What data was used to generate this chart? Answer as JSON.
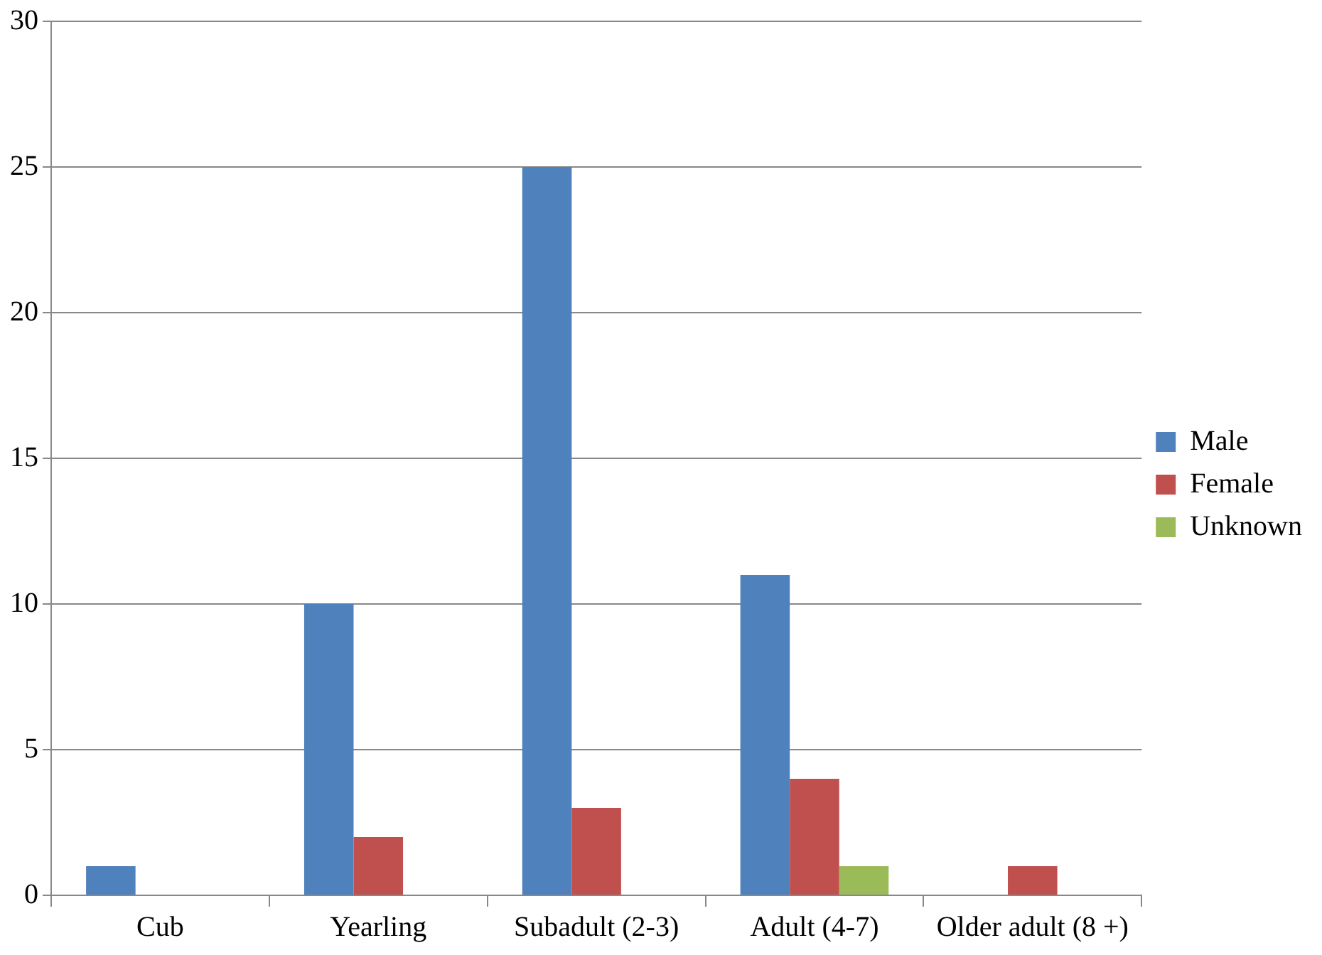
{
  "chart_data": {
    "type": "bar",
    "categories": [
      "Cub",
      "Yearling",
      "Subadult (2-3)",
      "Adult (4-7)",
      "Older adult (8 +)"
    ],
    "series": [
      {
        "name": "Male",
        "color": "#4f81bd",
        "values": [
          1,
          10,
          25,
          11,
          0
        ]
      },
      {
        "name": "Female",
        "color": "#c0504d",
        "values": [
          0,
          2,
          3,
          4,
          1
        ]
      },
      {
        "name": "Unknown",
        "color": "#9bbb59",
        "values": [
          0,
          0,
          0,
          1,
          0
        ]
      }
    ],
    "ylim": [
      0,
      30
    ],
    "yticks": [
      0,
      5,
      10,
      15,
      20,
      25,
      30
    ],
    "grid": "y",
    "legend": "right"
  }
}
